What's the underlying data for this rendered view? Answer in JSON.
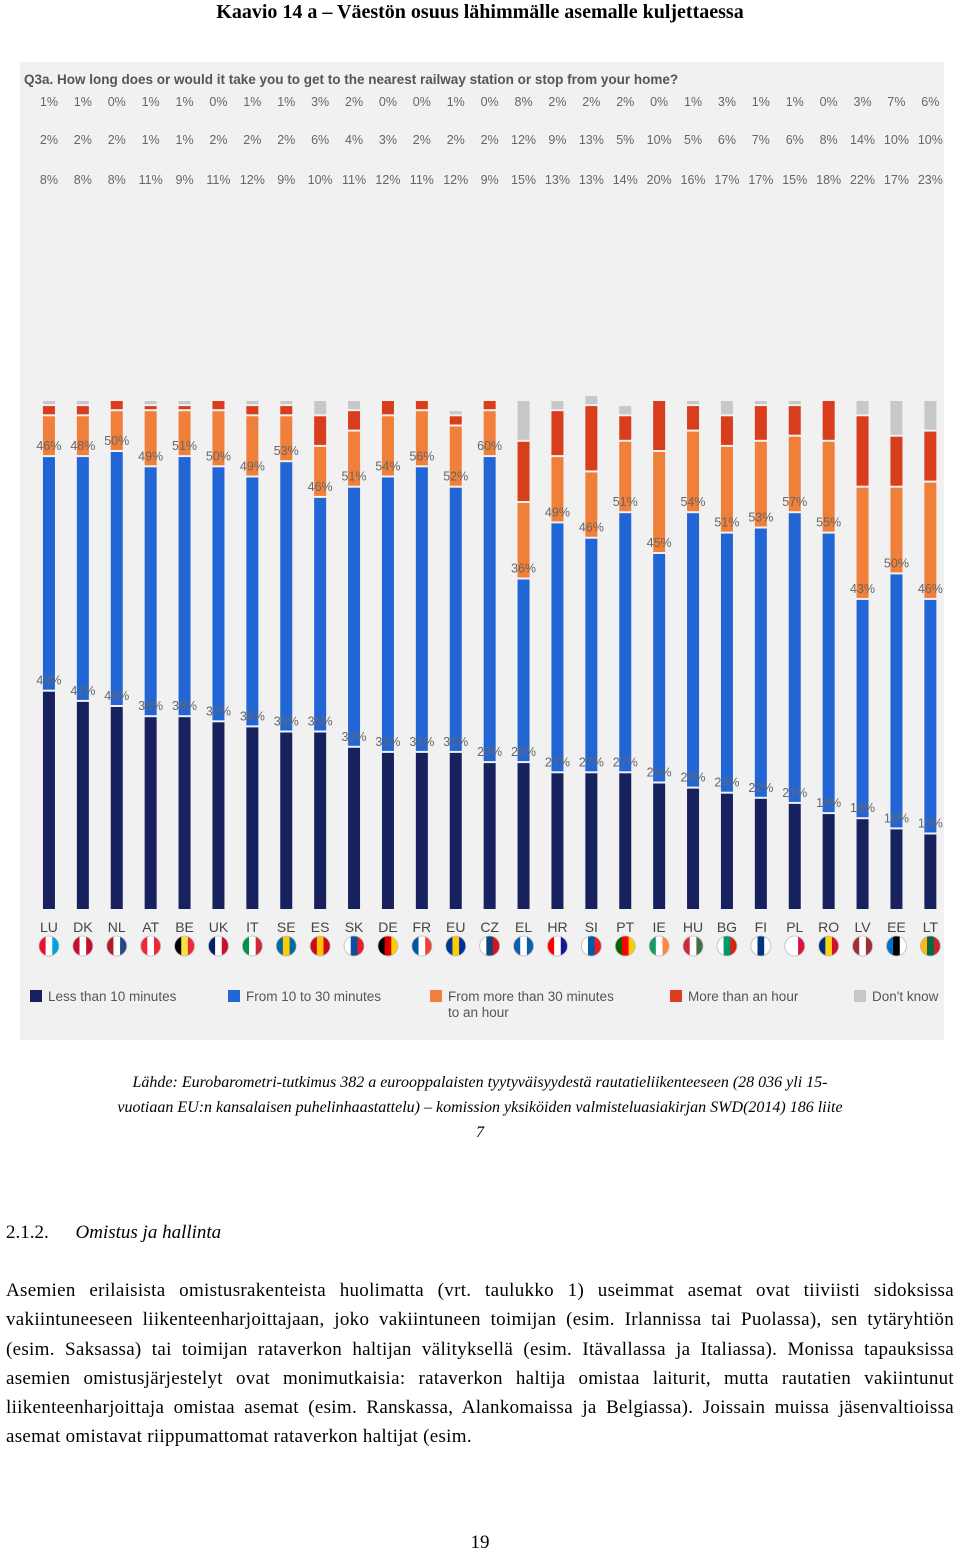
{
  "figure_title": "Kaavio 14 a – Väestön osuus lähimmälle asemalle kuljettaessa",
  "chart_data": {
    "type": "bar",
    "stacked": true,
    "title": "Q3a. How long does or would it take you to get to the nearest railway station or stop from your home?",
    "categories": [
      "LU",
      "DK",
      "NL",
      "AT",
      "BE",
      "UK",
      "IT",
      "SE",
      "ES",
      "SK",
      "DE",
      "FR",
      "EU",
      "CZ",
      "EL",
      "HR",
      "SI",
      "PT",
      "IE",
      "HU",
      "BG",
      "FI",
      "PL",
      "RO",
      "LV",
      "EE",
      "LT"
    ],
    "series": [
      {
        "name": "Less than 10 minutes",
        "color": "#16215e",
        "values": [
          43,
          41,
          40,
          38,
          38,
          37,
          36,
          35,
          35,
          32,
          31,
          31,
          31,
          29,
          29,
          27,
          27,
          27,
          25,
          24,
          23,
          22,
          21,
          19,
          18,
          16,
          15
        ]
      },
      {
        "name": "From 10 to 30 minutes",
        "color": "#2266d6",
        "values": [
          46,
          48,
          50,
          49,
          51,
          50,
          49,
          53,
          46,
          51,
          54,
          56,
          52,
          60,
          36,
          49,
          46,
          51,
          45,
          54,
          51,
          53,
          57,
          55,
          43,
          50,
          46
        ]
      },
      {
        "name": "From more than 30 minutes to an hour",
        "color": "#f07f3a",
        "values": [
          8,
          8,
          8,
          11,
          9,
          11,
          12,
          9,
          10,
          11,
          12,
          11,
          12,
          9,
          15,
          13,
          13,
          14,
          20,
          16,
          17,
          17,
          15,
          18,
          22,
          17,
          23
        ]
      },
      {
        "name": "More than an hour",
        "color": "#d83d1c",
        "values": [
          2,
          2,
          2,
          1,
          1,
          2,
          2,
          2,
          6,
          4,
          3,
          2,
          2,
          2,
          12,
          9,
          13,
          5,
          10,
          5,
          6,
          7,
          6,
          8,
          14,
          10,
          10
        ]
      },
      {
        "name": "Don't know",
        "color": "#c8c8c8",
        "values": [
          1,
          1,
          0,
          1,
          1,
          0,
          1,
          1,
          3,
          2,
          0,
          0,
          1,
          0,
          8,
          2,
          2,
          2,
          0,
          1,
          3,
          1,
          1,
          0,
          3,
          7,
          6
        ]
      }
    ],
    "legend": [
      {
        "label": "Less than 10 minutes",
        "color": "#16215e"
      },
      {
        "label": "From 10 to 30 minutes",
        "color": "#2266d6"
      },
      {
        "label": "From more than 30 minutes to an hour",
        "color": "#f07f3a"
      },
      {
        "label": "More than an hour",
        "color": "#d83d1c"
      },
      {
        "label": "Don't know",
        "color": "#c8c8c8"
      }
    ],
    "legend_position": "bottom",
    "flags": {
      "LU": [
        "#e8112d",
        "#ffffff",
        "#00a1de"
      ],
      "DK": [
        "#c60c30",
        "#ffffff",
        "#c60c30"
      ],
      "NL": [
        "#ae1c28",
        "#ffffff",
        "#21468b"
      ],
      "AT": [
        "#ed2939",
        "#ffffff",
        "#ed2939"
      ],
      "BE": [
        "#000000",
        "#fae042",
        "#ed2939"
      ],
      "UK": [
        "#012169",
        "#ffffff",
        "#c8102e"
      ],
      "IT": [
        "#009246",
        "#ffffff",
        "#ce2b37"
      ],
      "SE": [
        "#006aa7",
        "#fecc00",
        "#006aa7"
      ],
      "ES": [
        "#c60b1e",
        "#ffc400",
        "#c60b1e"
      ],
      "SK": [
        "#ffffff",
        "#0b4ea2",
        "#ee1c25"
      ],
      "DE": [
        "#000000",
        "#dd0000",
        "#ffce00"
      ],
      "FR": [
        "#0055a4",
        "#ffffff",
        "#ef4135"
      ],
      "EU": [
        "#003399",
        "#ffcc00",
        "#003399"
      ],
      "CZ": [
        "#ffffff",
        "#11457e",
        "#d7141a"
      ],
      "EL": [
        "#0d5eaf",
        "#ffffff",
        "#0d5eaf"
      ],
      "HR": [
        "#ff0000",
        "#ffffff",
        "#171796"
      ],
      "SI": [
        "#ffffff",
        "#005da4",
        "#ed1c24"
      ],
      "PT": [
        "#006600",
        "#ff0000",
        "#ffcc00"
      ],
      "IE": [
        "#169b62",
        "#ffffff",
        "#ff883e"
      ],
      "HU": [
        "#cd2a3e",
        "#ffffff",
        "#436f4d"
      ],
      "BG": [
        "#ffffff",
        "#00966e",
        "#d62612"
      ],
      "FI": [
        "#ffffff",
        "#003580",
        "#ffffff"
      ],
      "PL": [
        "#ffffff",
        "#ffffff",
        "#dc143c"
      ],
      "RO": [
        "#002b7f",
        "#fcd116",
        "#ce1126"
      ],
      "LV": [
        "#9e3039",
        "#ffffff",
        "#9e3039"
      ],
      "EE": [
        "#0072ce",
        "#000000",
        "#ffffff"
      ],
      "LT": [
        "#fdb913",
        "#006a44",
        "#c1272d"
      ]
    }
  },
  "caption": {
    "line1": "Lähde: Eurobarometri-tutkimus 382 a eurooppalaisten tyytyväisyydestä rautatieliikenteeseen (28 036 yli 15-",
    "line2": "vuotiaan EU:n kansalaisen puhelinhaastattelu) – komission yksiköiden valmisteluasiakirjan SWD(2014) 186 liite",
    "line3": "7"
  },
  "section": {
    "number": "2.1.2.",
    "title": "Omistus ja hallinta"
  },
  "body_text": "Asemien erilaisista omistusrakenteista huolimatta (vrt. taulukko 1) useimmat asemat ovat tiiviisti sidoksissa vakiintuneeseen liikenteenharjoittajaan, joko vakiintuneen toimijan (esim. Irlannissa tai Puolassa), sen tytäryhtiön (esim. Saksassa) tai toimijan rataverkon haltijan välityksellä (esim. Itävallassa ja Italiassa). Monissa tapauksissa asemien omistusjärjestelyt ovat monimutkaisia: rataverkon haltija omistaa laiturit, mutta rautatien vakiintunut liikenteenharjoittaja omistaa asemat (esim. Ranskassa, Alankomaissa ja Belgiassa). Joissain muissa jäsenvaltioissa asemat omistavat riippumattomat rataverkon haltijat (esim.",
  "page_number": "19"
}
